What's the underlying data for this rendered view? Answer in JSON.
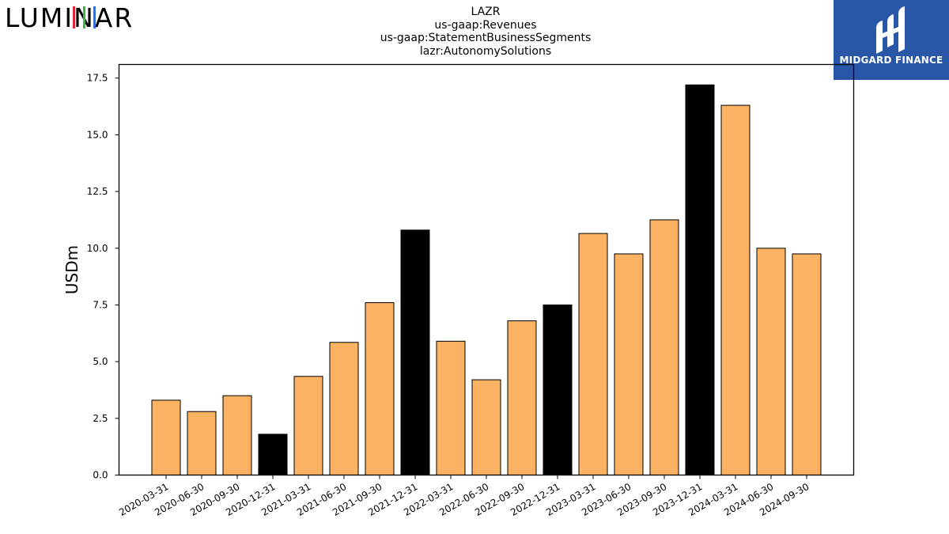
{
  "logos": {
    "left": {
      "text": "LUMINAR",
      "icon": "luminar-wordmark"
    },
    "right": {
      "text": "MIDGARD FINANCE",
      "icon": "midgard-finance-logo",
      "background": "#2a56a8"
    }
  },
  "chart_data": {
    "type": "bar",
    "title_lines": [
      "LAZR",
      "us-gaap:Revenues",
      "us-gaap:StatementBusinessSegments",
      "lazr:AutonomySolutions"
    ],
    "xlabel": "",
    "ylabel": "USDm",
    "ylim": [
      0,
      18.1
    ],
    "yticks": [
      0.0,
      2.5,
      5.0,
      7.5,
      10.0,
      12.5,
      15.0,
      17.5
    ],
    "ytick_labels": [
      "0.0",
      "2.5",
      "5.0",
      "7.5",
      "10.0",
      "12.5",
      "15.0",
      "17.5"
    ],
    "grid": false,
    "legend": "none",
    "categories": [
      "2020-03-31",
      "2020-06-30",
      "2020-09-30",
      "2020-12-31",
      "2021-03-31",
      "2021-06-30",
      "2021-09-30",
      "2021-12-31",
      "2022-03-31",
      "2022-06-30",
      "2022-09-30",
      "2022-12-31",
      "2023-03-31",
      "2023-06-30",
      "2023-09-30",
      "2023-12-31",
      "2024-03-31",
      "2024-06-30",
      "2024-09-30"
    ],
    "values": [
      3.3,
      2.8,
      3.5,
      1.8,
      4.35,
      5.85,
      7.6,
      10.8,
      5.9,
      4.2,
      6.8,
      7.5,
      10.65,
      9.75,
      11.25,
      17.2,
      16.3,
      10.0,
      9.75
    ],
    "bar_colors": [
      "#fbb363",
      "#fbb363",
      "#fbb363",
      "#000000",
      "#fbb363",
      "#fbb363",
      "#fbb363",
      "#000000",
      "#fbb363",
      "#fbb363",
      "#fbb363",
      "#000000",
      "#fbb363",
      "#fbb363",
      "#fbb363",
      "#000000",
      "#fbb363",
      "#fbb363",
      "#fbb363"
    ],
    "colors": {
      "quarter": "#fbb363",
      "year_end": "#000000",
      "edge": "#000000"
    }
  }
}
